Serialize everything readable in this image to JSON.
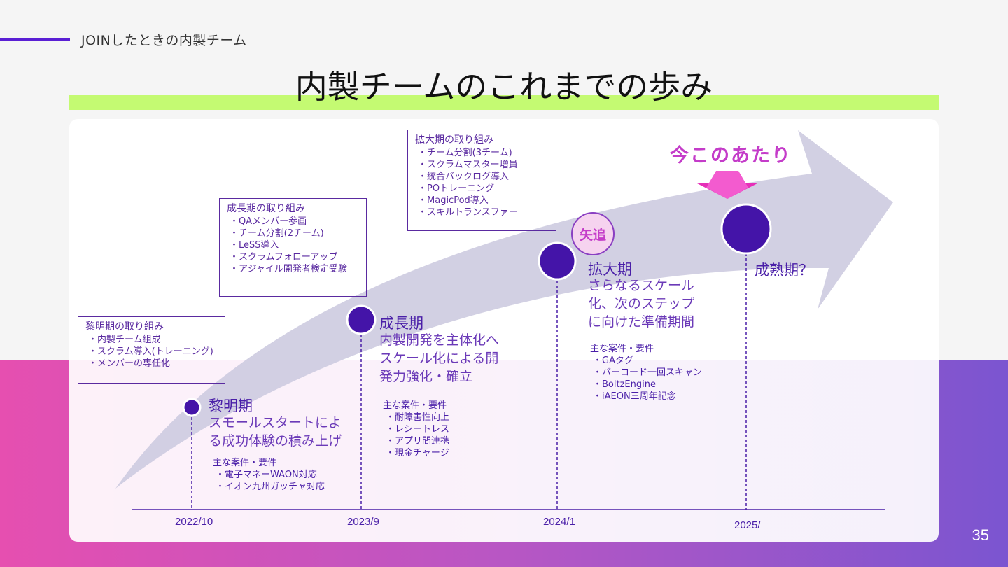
{
  "header": {
    "section_label": "JOINしたときの内製チーム",
    "title": "内製チームのこれまでの歩み",
    "page_number": "35"
  },
  "colors": {
    "accent_purple": "#4a1fa8",
    "highlight_green": "#c4fa72",
    "arrow_gray": "#cdcbe0",
    "magenta": "#c43cc9"
  },
  "timeline": {
    "dates": [
      "2022/10",
      "2023/9",
      "2024/1",
      "2025/"
    ],
    "now_label": "今このあたり",
    "chase_badge": "矢追"
  },
  "phases": [
    {
      "name": "黎明期",
      "desc": [
        "スモールスタートによ",
        "る成功体験の積み上げ"
      ],
      "reqs_title": "主な案件・要件",
      "reqs": [
        "電子マネーWAON対応",
        "イオン九州ガッチャ対応"
      ],
      "box_title": "黎明期の取り組み",
      "box_items": [
        "内製チーム組成",
        "スクラム導入(トレーニング)",
        "メンバーの専任化"
      ]
    },
    {
      "name": "成長期",
      "desc": [
        "内製開発を主体化へ",
        "スケール化による開",
        "発力強化・確立"
      ],
      "reqs_title": "主な案件・要件",
      "reqs": [
        "耐障害性向上",
        "レシートレス",
        "アプリ間連携",
        "現金チャージ"
      ],
      "box_title": "成長期の取り組み",
      "box_items": [
        "QAメンバー参画",
        "チーム分割(2チーム)",
        "LeSS導入",
        "スクラムフォローアップ",
        "アジャイル開発者検定受験"
      ]
    },
    {
      "name": "拡大期",
      "desc": [
        "さらなるスケール",
        "化、次のステップ",
        "に向けた準備期間"
      ],
      "reqs_title": "主な案件・要件",
      "reqs": [
        "GAタグ",
        "バーコード一回スキャン",
        "BoltzEngine",
        "iAEON三周年記念"
      ],
      "box_title": "拡大期の取り組み",
      "box_items": [
        "チーム分割(3チーム)",
        "スクラムマスター増員",
        "統合バックログ導入",
        "POトレーニング",
        "MagicPod導入",
        "スキルトランスファー"
      ]
    },
    {
      "name": "成熟期？"
    }
  ]
}
